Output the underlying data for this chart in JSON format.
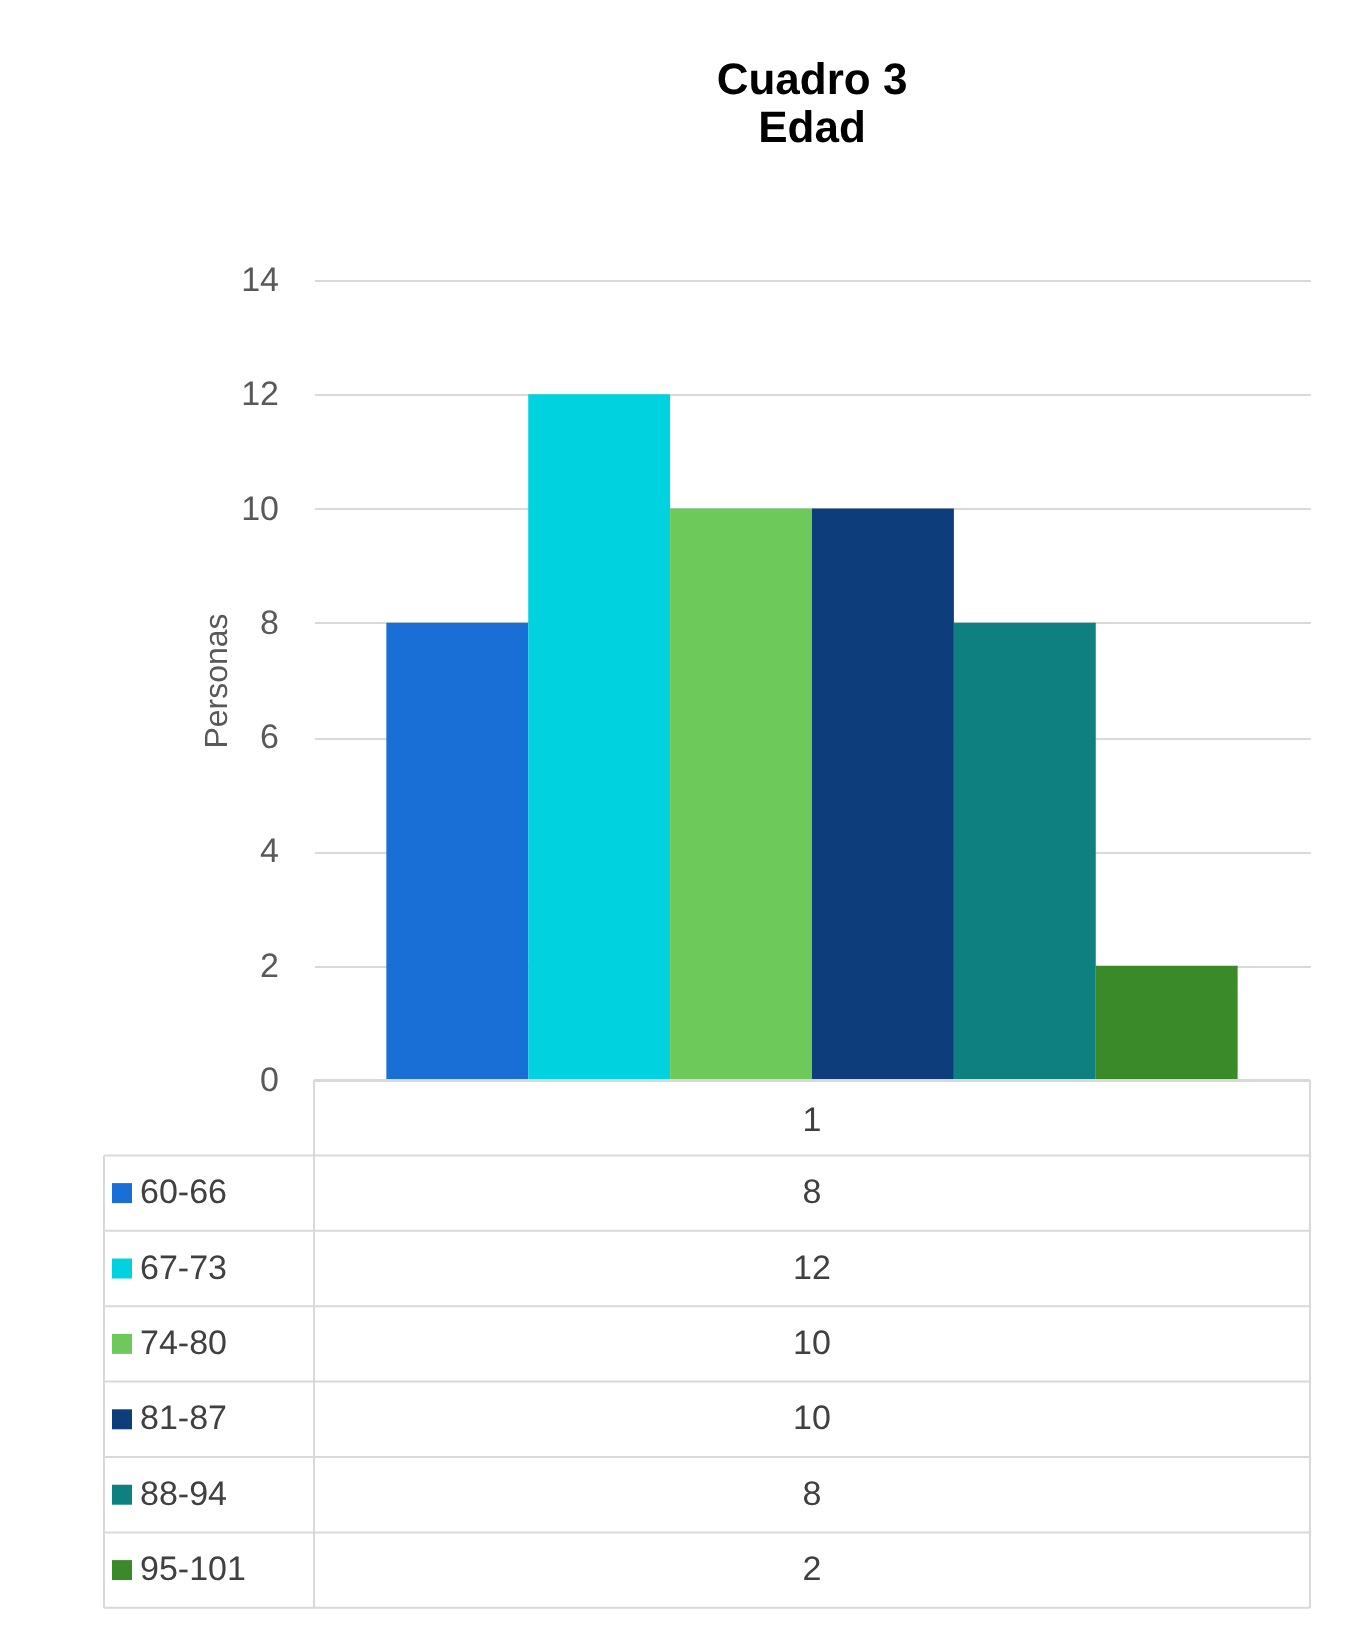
{
  "chart_data": {
    "type": "bar",
    "title": "Cuadro 3\nEdad",
    "ylabel": "Personas",
    "categories": [
      "1"
    ],
    "series": [
      {
        "name": "60-66",
        "color": "#1a6fd6",
        "values": [
          8
        ]
      },
      {
        "name": "67-73",
        "color": "#00d2e0",
        "values": [
          12
        ]
      },
      {
        "name": "74-80",
        "color": "#6cc95a",
        "values": [
          10
        ]
      },
      {
        "name": "81-87",
        "color": "#0d3d7a",
        "values": [
          10
        ]
      },
      {
        "name": "88-94",
        "color": "#0e8080",
        "values": [
          8
        ]
      },
      {
        "name": "95-101",
        "color": "#3a8a2a",
        "values": [
          2
        ]
      }
    ],
    "ylim": [
      0,
      14
    ],
    "yticks": [
      0,
      2,
      4,
      6,
      8,
      10,
      12,
      14
    ],
    "grid": "y",
    "legend": "bottom",
    "annotations": [
      "8",
      "12",
      "10",
      "10",
      "8",
      "2"
    ]
  }
}
